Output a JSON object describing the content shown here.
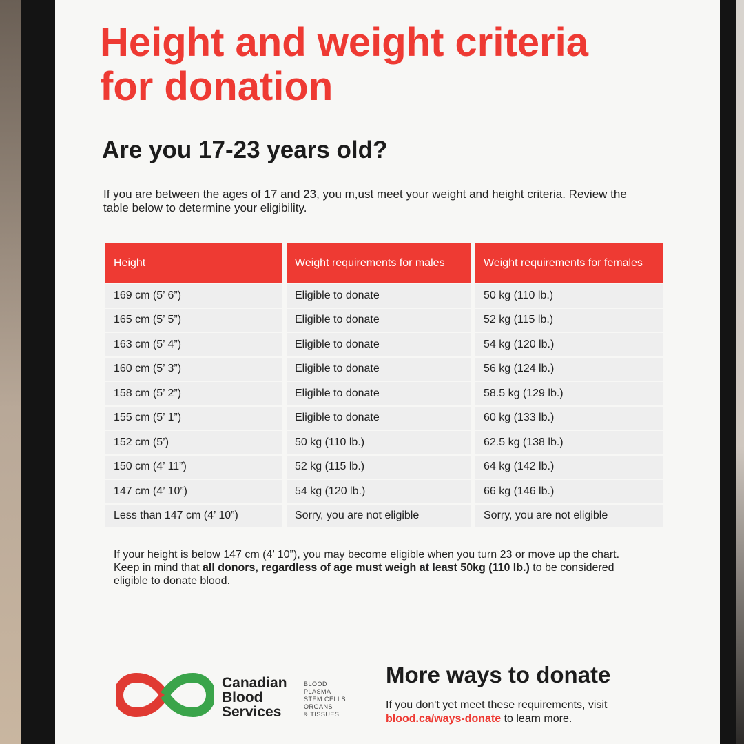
{
  "header": {
    "title": "Height and weight criteria for donation",
    "subtitle": "Are you 17-23 years old?",
    "intro": "If you are between the ages of 17 and 23, you m,ust meet your weight and height criteria. Review the table below to determine your eligibility."
  },
  "table": {
    "headers": [
      "Height",
      "Weight requirements for males",
      "Weight requirements for females"
    ],
    "rows": [
      [
        "169 cm (5’ 6”)",
        "Eligible to donate",
        "50 kg (110 lb.)"
      ],
      [
        "165 cm (5’ 5”)",
        "Eligible to donate",
        "52 kg (115 lb.)"
      ],
      [
        "163 cm (5’ 4”)",
        "Eligible to donate",
        "54 kg (120 lb.)"
      ],
      [
        "160 cm (5’ 3”)",
        "Eligible to donate",
        "56 kg (124 lb.)"
      ],
      [
        "158 cm (5’ 2”)",
        "Eligible to donate",
        "58.5 kg (129 lb.)"
      ],
      [
        "155 cm (5’ 1”)",
        "Eligible to donate",
        "60 kg (133 lb.)"
      ],
      [
        "152 cm (5’)",
        "50 kg (110 lb.)",
        "62.5 kg (138 lb.)"
      ],
      [
        "150 cm (4’ 11”)",
        "52 kg (115 lb.)",
        "64 kg (142 lb.)"
      ],
      [
        "147 cm (4’ 10”)",
        "54 kg (120 lb.)",
        "66 kg (146 lb.)"
      ],
      [
        "Less than 147 cm (4’ 10”)",
        "Sorry, you are not eligible",
        "Sorry, you are not eligible"
      ]
    ]
  },
  "footnote": {
    "text": "If your height is below 147 cm (4’ 10”), you may become eligible when you turn 23 or move up the chart. Keep in mind that ",
    "bold": "all donors, regardless of age must weigh at least 50kg (110 lb.)",
    "end": " to be considered eligible to donate blood."
  },
  "logo": {
    "name": "Canadian Blood Services",
    "categories": [
      "BLOOD",
      "PLASMA",
      "STEM CELLS",
      "ORGANS",
      "& TISSUES"
    ]
  },
  "more": {
    "title": "More ways to donate",
    "text": "If you don't yet meet these requirements, visit ",
    "link": "blood.ca/ways-donate",
    "end": " to learn more."
  }
}
